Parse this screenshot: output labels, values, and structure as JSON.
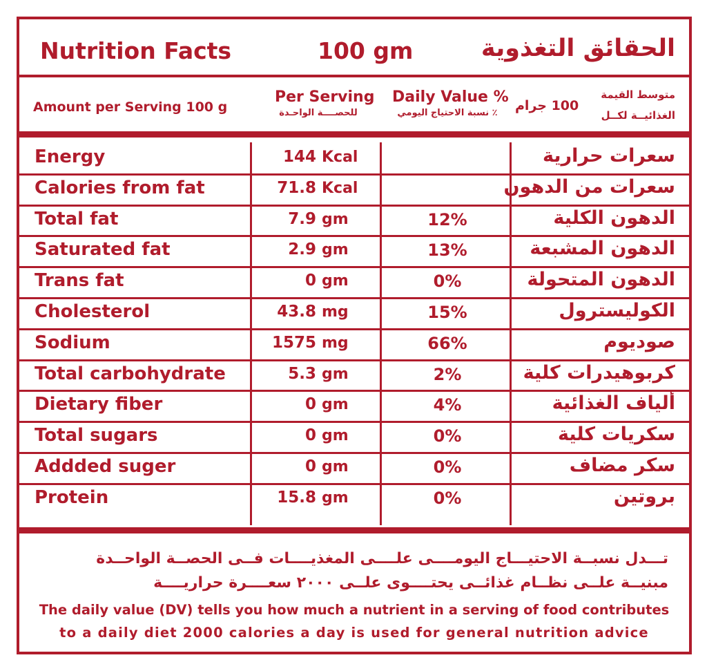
{
  "header": {
    "title_en": "Nutrition Facts",
    "serving": "100 gm",
    "title_ar": "الحقائق التغذوية"
  },
  "subheader": {
    "amount_per_serving": "Amount per Serving 100 g",
    "per_serving_en": "Per Serving",
    "per_serving_ar": "للحصــــة الواحـدة",
    "daily_value_en": "Daily Value %",
    "daily_value_ar": "٪ نسبة الاحتياج اليومي",
    "avg_value_ar": "متوسط القيمة",
    "per_100g_ar": "100 جرام",
    "nutritional_per_ar": "الغذائيــة لكــل"
  },
  "rows": [
    {
      "name_en": "Energy",
      "amount": "144",
      "unit": "Kcal",
      "dv": "",
      "name_ar": "سعرات حرارية"
    },
    {
      "name_en": "Calories from fat",
      "amount": "71.8",
      "unit": "Kcal",
      "dv": "",
      "name_ar": "سعرات من الدهون"
    },
    {
      "name_en": "Total fat",
      "amount": "7.9",
      "unit": "gm",
      "dv": "12%",
      "name_ar": "الدهون الكلية"
    },
    {
      "name_en": "Saturated fat",
      "amount": "2.9",
      "unit": "gm",
      "dv": "13%",
      "name_ar": "الدهون المشبعة"
    },
    {
      "name_en": "Trans fat",
      "amount": "0",
      "unit": "gm",
      "dv": "0%",
      "name_ar": "الدهون المتحولة"
    },
    {
      "name_en": "Cholesterol",
      "amount": "43.8",
      "unit": "mg",
      "dv": "15%",
      "name_ar": "الكوليسترول"
    },
    {
      "name_en": "Sodium",
      "amount": "1575",
      "unit": "mg",
      "dv": "66%",
      "name_ar": "صوديوم"
    },
    {
      "name_en": "Total carbohydrate",
      "amount": "5.3",
      "unit": "gm",
      "dv": "2%",
      "name_ar": "كربوهيدرات كلية"
    },
    {
      "name_en": "Dietary fiber",
      "amount": "0",
      "unit": "gm",
      "dv": "4%",
      "name_ar": "ألياف الغذائية"
    },
    {
      "name_en": "Total sugars",
      "amount": "0",
      "unit": "gm",
      "dv": "0%",
      "name_ar": "سكريات كلية"
    },
    {
      "name_en": "Addded suger",
      "amount": "0",
      "unit": "gm",
      "dv": "0%",
      "name_ar": "سكر مضاف"
    },
    {
      "name_en": "Protein",
      "amount": "15.8",
      "unit": "gm",
      "dv": "0%",
      "name_ar": "بروتين"
    }
  ],
  "footer": {
    "ar_line1": "تـــدل نسبــة الاحتيـــاج اليومــــى علــــى المغذيــــات فــى الحصــة الواحــدة",
    "ar_line2": "مبنيــة علــى نظــام غذائــى يحتــــوى علــى ٢٠٠٠ سعــــرة حراريــــة",
    "en_line1": "The daily value (DV) tells you how much a nutrient in a serving of food contributes",
    "en_line2": "to a daily diet 2000 calories a day is used for general nutrition advice"
  },
  "colors": {
    "accent": "#b01c2c",
    "background": "#ffffff"
  }
}
